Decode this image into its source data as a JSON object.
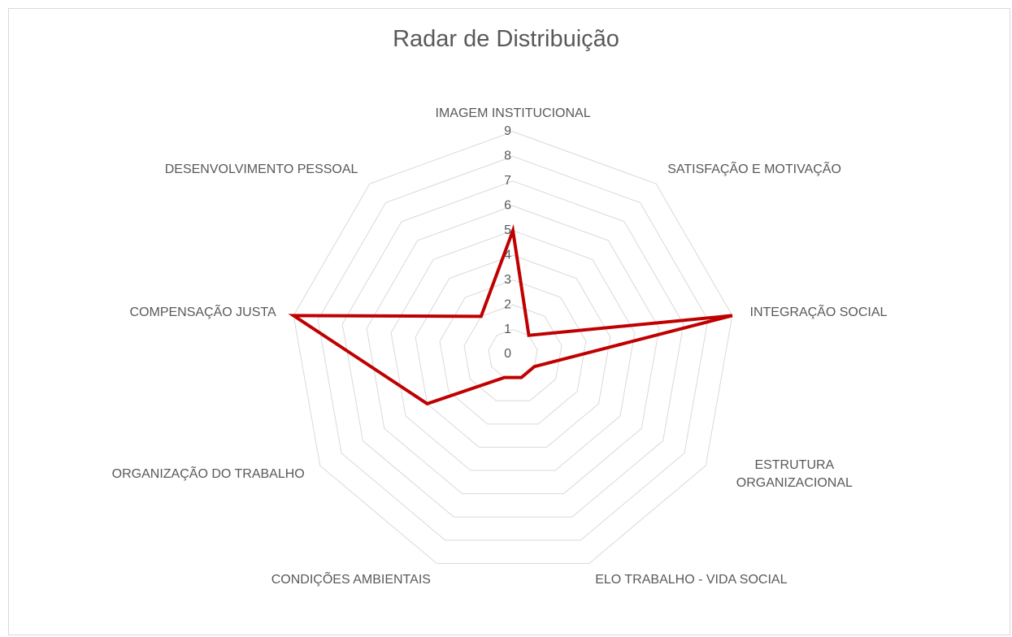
{
  "chart_data": {
    "type": "radar",
    "title": "Radar de Distribuição",
    "categories": [
      "IMAGEM INSTITUCIONAL",
      "SATISFAÇÃO E MOTIVAÇÃO",
      "INTEGRAÇÃO SOCIAL",
      "ESTRUTURA ORGANIZACIONAL",
      "ELO TRABALHO - VIDA SOCIAL",
      "CONDIÇÕES AMBIENTAIS",
      "ORGANIZAÇÃO DO TRABALHO",
      "COMPENSAÇÃO JUSTA",
      "DESENVOLVIMENTO PESSOAL"
    ],
    "values": [
      5,
      1,
      9,
      1,
      1,
      1,
      4,
      9,
      2
    ],
    "color": "#c00000",
    "ylim": [
      0,
      9
    ],
    "yticks": [
      0,
      1,
      2,
      3,
      4,
      5,
      6,
      7,
      8,
      9
    ],
    "grid": true
  }
}
